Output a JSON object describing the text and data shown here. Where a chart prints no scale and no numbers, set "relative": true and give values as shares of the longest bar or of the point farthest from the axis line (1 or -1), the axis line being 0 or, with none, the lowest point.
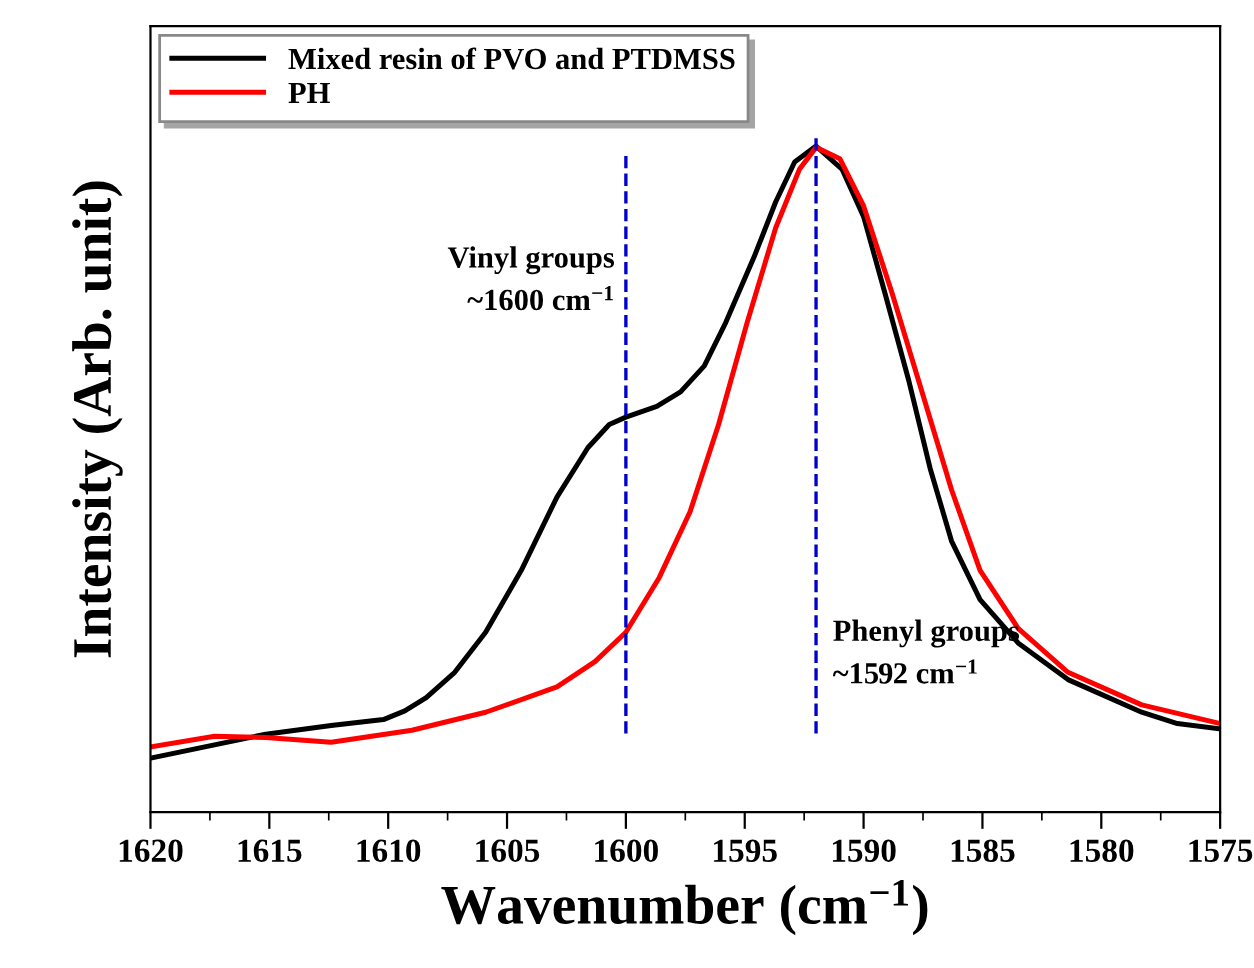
{
  "chart_data": {
    "type": "line",
    "relative": true,
    "xlabel": "Wavenumber (cm$^{−1}$)",
    "ylabel": "Intensity (Arb. unit)",
    "xlim": [
      1620,
      1575
    ],
    "xticks": [
      1620,
      1615,
      1610,
      1605,
      1600,
      1595,
      1590,
      1585,
      1580,
      1575
    ],
    "legend": "top left",
    "grid": false,
    "line_style": "solid",
    "marker": "none",
    "series": [
      {
        "name": "Mixed resin of PVO and PTDMSS",
        "color": "#000000",
        "x": [
          1620,
          1615.15,
          1612.4,
          1610.2,
          1609.3,
          1608.4,
          1607.2,
          1605.9,
          1604.4,
          1602.9,
          1601.6,
          1600.7,
          1600.0,
          1598.7,
          1597.7,
          1596.7,
          1595.8,
          1594.6,
          1593.7,
          1592.9,
          1592.0,
          1590.9,
          1590.0,
          1589.1,
          1588.1,
          1587.2,
          1586.3,
          1585.1,
          1583.5,
          1581.4,
          1578.3,
          1576.8,
          1575
        ],
        "values": [
          0.081,
          0.117,
          0.13,
          0.139,
          0.152,
          0.172,
          0.21,
          0.27,
          0.363,
          0.473,
          0.547,
          0.582,
          0.593,
          0.609,
          0.631,
          0.67,
          0.735,
          0.834,
          0.916,
          0.976,
          1.0,
          0.965,
          0.894,
          0.779,
          0.648,
          0.516,
          0.407,
          0.319,
          0.254,
          0.199,
          0.15,
          0.133,
          0.125
        ]
      },
      {
        "name": "PH",
        "color": "#ff0000",
        "x": [
          1620,
          1617.3,
          1615.15,
          1612.4,
          1609.0,
          1605.9,
          1602.9,
          1601.3,
          1600.0,
          1598.6,
          1597.3,
          1596.1,
          1594.9,
          1593.7,
          1592.7,
          1592.0,
          1591.0,
          1590.0,
          1588.8,
          1587.5,
          1586.3,
          1585.1,
          1583.5,
          1581.4,
          1578.3,
          1575
        ],
        "values": [
          0.098,
          0.114,
          0.112,
          0.105,
          0.123,
          0.15,
          0.188,
          0.226,
          0.27,
          0.352,
          0.451,
          0.582,
          0.735,
          0.877,
          0.965,
          0.998,
          0.981,
          0.91,
          0.779,
          0.626,
          0.484,
          0.363,
          0.276,
          0.21,
          0.161,
          0.133
        ]
      }
    ],
    "ref_lines": [
      {
        "axis": "x",
        "value": 1600,
        "color": "#0000cc",
        "line_style": "dashed",
        "label": "Vinyl groups\n~1600 cm$^{−1}$"
      },
      {
        "axis": "x",
        "value": 1592,
        "color": "#0000cc",
        "line_style": "dashed",
        "label": "Phenyl groups\n~1592 cm$^{−1}$"
      }
    ]
  }
}
